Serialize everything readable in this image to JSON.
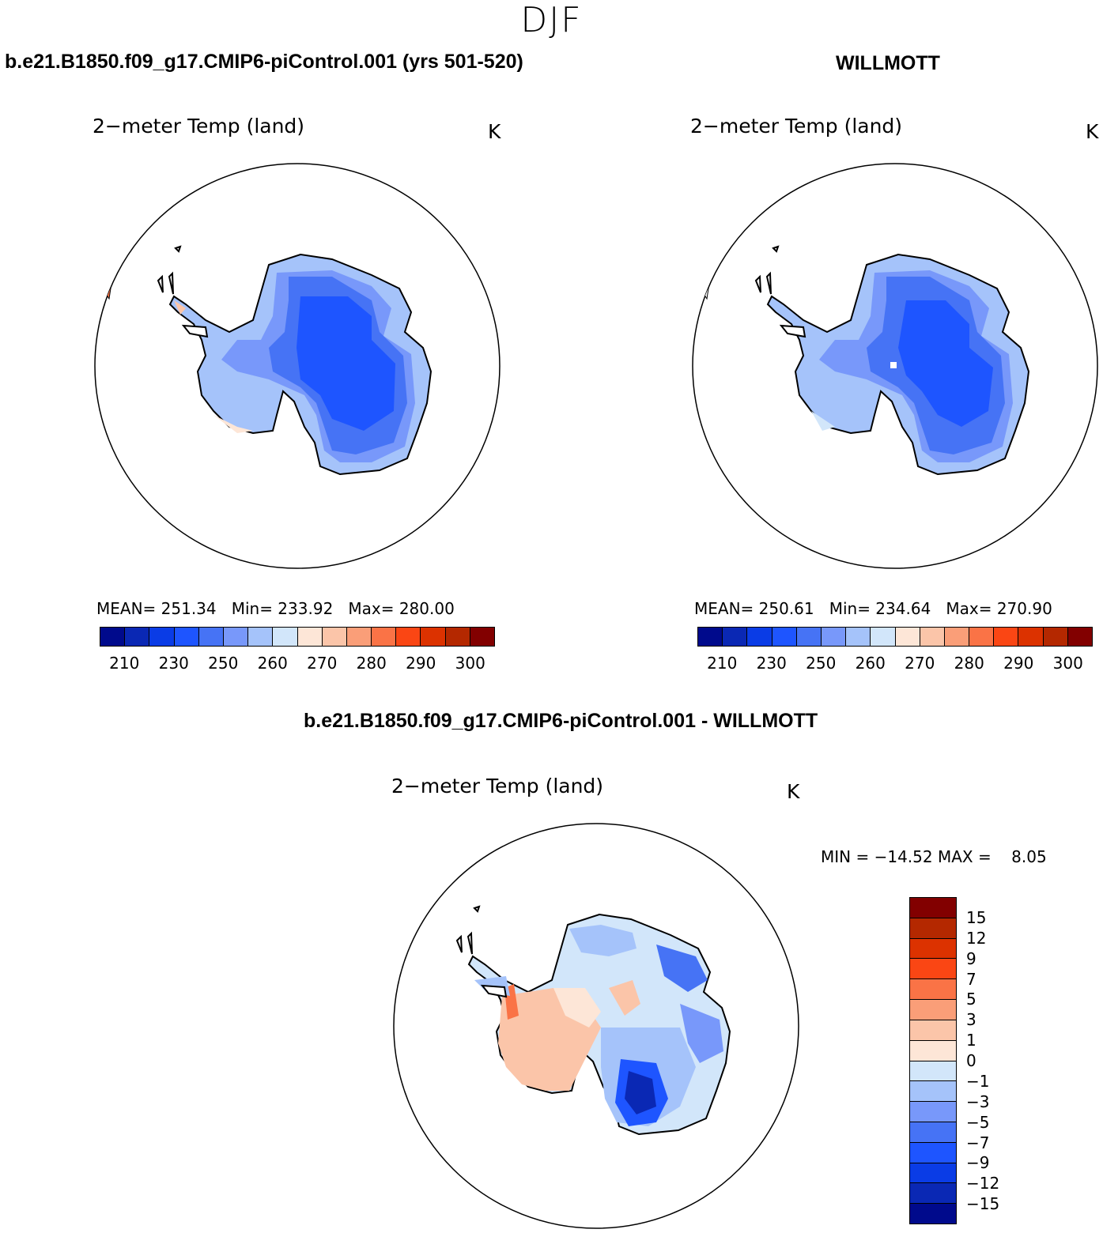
{
  "figure": {
    "season": "DJF"
  },
  "panels": {
    "left": {
      "case_title": "b.e21.B1850.f09_g17.CMIP6-piControl.001 (yrs 501-520)",
      "variable": "2−meter Temp (land)",
      "units": "K",
      "stats": "MEAN= 251.34   Min= 233.92   Max= 280.00"
    },
    "right": {
      "case_title": "WILLMOTT",
      "variable": "2−meter Temp (land)",
      "units": "K",
      "stats": "MEAN= 250.61   Min= 234.64   Max= 270.90"
    },
    "diff": {
      "case_title": "b.e21.B1850.f09_g17.CMIP6-piControl.001 - WILLMOTT",
      "variable": "2−meter Temp (land)",
      "units": "K",
      "stats": "MIN = −14.52 MAX =    8.05"
    }
  },
  "colorbar_abs": {
    "colors": [
      "#000a8c",
      "#0a28b4",
      "#0a3ce6",
      "#1e55ff",
      "#4673f5",
      "#7898fa",
      "#a5c3fa",
      "#d2e6fa",
      "#fde6d7",
      "#fbc5a9",
      "#fa9e78",
      "#fa7346",
      "#fa4614",
      "#dc3200",
      "#b42800",
      "#820000"
    ],
    "labels": [
      "210",
      "230",
      "250",
      "260",
      "270",
      "280",
      "290",
      "300"
    ]
  },
  "colorbar_diff": {
    "colors": [
      "#820000",
      "#b42800",
      "#dc3200",
      "#fa4614",
      "#fa7346",
      "#fa9e78",
      "#fbc5a9",
      "#fde6d7",
      "#d2e6fa",
      "#a5c3fa",
      "#7898fa",
      "#4673f5",
      "#1e55ff",
      "#0a3ce6",
      "#0a28b4",
      "#000a8c"
    ],
    "labels": [
      "15",
      "12",
      "9",
      "7",
      "5",
      "3",
      "1",
      "0",
      "−1",
      "−3",
      "−5",
      "−7",
      "−9",
      "−12",
      "−15"
    ]
  }
}
